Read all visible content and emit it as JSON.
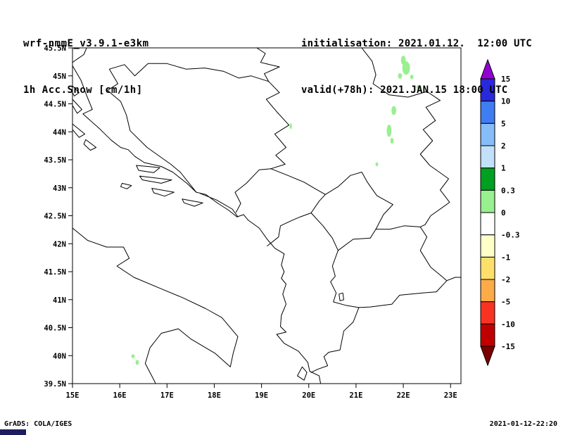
{
  "header": {
    "model": "wrf-nmmE_v3.9.1-e3km",
    "field": "1h Acc.Snow [cm/1h]",
    "init": "initialisation: 2021.01.12.  12:00 UTC",
    "valid": "valid(+78h): 2021.JAN.15 18:00 UTC"
  },
  "footer": {
    "left": "GrADS: COLA/IGES",
    "right": "2021-01-12-22:20"
  },
  "chart_data": {
    "type": "map",
    "title": "1h Acc.Snow [cm/1h]",
    "units": "cm/1h",
    "region": "Adriatic / Balkans",
    "x_axis": {
      "range": [
        15,
        23.22
      ],
      "ticks": [
        {
          "v": 15,
          "label": "15E"
        },
        {
          "v": 16,
          "label": "16E"
        },
        {
          "v": 17,
          "label": "17E"
        },
        {
          "v": 18,
          "label": "18E"
        },
        {
          "v": 19,
          "label": "19E"
        },
        {
          "v": 20,
          "label": "20E"
        },
        {
          "v": 21,
          "label": "21E"
        },
        {
          "v": 22,
          "label": "22E"
        },
        {
          "v": 23,
          "label": "23E"
        }
      ]
    },
    "y_axis": {
      "range": [
        39.5,
        45.5
      ],
      "ticks": [
        {
          "v": 39.5,
          "label": "39.5N"
        },
        {
          "v": 40,
          "label": "40N"
        },
        {
          "v": 40.5,
          "label": "40.5N"
        },
        {
          "v": 41,
          "label": "41N"
        },
        {
          "v": 41.5,
          "label": "41.5N"
        },
        {
          "v": 42,
          "label": "42N"
        },
        {
          "v": 42.5,
          "label": "42.5N"
        },
        {
          "v": 43,
          "label": "43N"
        },
        {
          "v": 43.5,
          "label": "43.5N"
        },
        {
          "v": 44,
          "label": "44N"
        },
        {
          "v": 44.5,
          "label": "44.5N"
        },
        {
          "v": 45,
          "label": "45N"
        },
        {
          "v": 45.5,
          "label": "45.5N"
        }
      ]
    },
    "colorbar": {
      "levels": [
        "15",
        "10",
        "5",
        "2",
        "1",
        "0.3",
        "0",
        "-0.3",
        "-1",
        "-2",
        "-5",
        "-10",
        "-15"
      ],
      "segment_colors": [
        "#2828dc",
        "#3f7df2",
        "#86bdf8",
        "#c3e0fb",
        "#00a020",
        "#98f08e",
        "#ffffff",
        "#ffffc8",
        "#fde06a",
        "#fcab47",
        "#f93322",
        "#c00000"
      ],
      "arrow_top_color": "#9400d3",
      "arrow_bottom_color": "#7d0000"
    },
    "snow_patches": {
      "color": "#98f08e",
      "value_range_cm": [
        0,
        1
      ],
      "ellipses_lon_lat_rx_ry": [
        [
          22.0,
          45.28,
          0.05,
          0.08
        ],
        [
          22.06,
          45.14,
          0.08,
          0.12
        ],
        [
          21.93,
          45.0,
          0.045,
          0.05
        ],
        [
          22.18,
          44.98,
          0.035,
          0.04
        ],
        [
          22.33,
          44.8,
          0.05,
          0.04
        ],
        [
          21.8,
          44.38,
          0.05,
          0.08
        ],
        [
          21.7,
          44.02,
          0.05,
          0.11
        ],
        [
          21.76,
          43.84,
          0.035,
          0.05
        ],
        [
          21.44,
          43.42,
          0.03,
          0.035
        ],
        [
          19.62,
          44.1,
          0.025,
          0.05
        ],
        [
          16.28,
          39.99,
          0.035,
          0.035
        ],
        [
          16.37,
          39.88,
          0.035,
          0.045
        ]
      ]
    },
    "map_lines": {
      "coast_east": [
        [
          15.0,
          45.18
        ],
        [
          15.18,
          44.92
        ],
        [
          15.3,
          44.65
        ],
        [
          15.42,
          44.4
        ],
        [
          15.22,
          44.32
        ],
        [
          15.58,
          44.05
        ],
        [
          15.82,
          43.85
        ],
        [
          16.02,
          43.72
        ],
        [
          16.18,
          43.68
        ],
        [
          16.32,
          43.56
        ],
        [
          16.52,
          43.45
        ],
        [
          16.88,
          43.38
        ],
        [
          17.12,
          43.28
        ],
        [
          17.42,
          43.08
        ],
        [
          17.62,
          42.92
        ],
        [
          17.82,
          42.88
        ],
        [
          18.08,
          42.72
        ],
        [
          18.3,
          42.6
        ],
        [
          18.48,
          42.48
        ],
        [
          18.62,
          42.52
        ],
        [
          18.72,
          42.42
        ],
        [
          18.95,
          42.28
        ],
        [
          19.12,
          42.08
        ],
        [
          19.28,
          41.92
        ],
        [
          19.48,
          41.82
        ],
        [
          19.42,
          41.62
        ],
        [
          19.48,
          41.5
        ],
        [
          19.42,
          41.38
        ],
        [
          19.52,
          41.28
        ],
        [
          19.45,
          41.1
        ],
        [
          19.52,
          40.92
        ],
        [
          19.42,
          40.72
        ],
        [
          19.4,
          40.52
        ],
        [
          19.52,
          40.42
        ],
        [
          19.32,
          40.38
        ],
        [
          19.48,
          40.22
        ],
        [
          19.78,
          40.08
        ],
        [
          19.98,
          39.88
        ],
        [
          20.02,
          39.72
        ],
        [
          20.22,
          39.64
        ],
        [
          20.25,
          39.5
        ]
      ],
      "coast_italy": [
        [
          15.0,
          42.28
        ],
        [
          15.32,
          42.06
        ],
        [
          15.72,
          41.94
        ],
        [
          16.08,
          41.94
        ],
        [
          16.2,
          41.74
        ],
        [
          15.94,
          41.6
        ],
        [
          16.3,
          41.4
        ],
        [
          16.86,
          41.2
        ],
        [
          17.32,
          41.04
        ],
        [
          17.82,
          40.84
        ],
        [
          18.16,
          40.68
        ],
        [
          18.5,
          40.34
        ],
        [
          18.4,
          40.04
        ],
        [
          18.34,
          39.8
        ],
        [
          18.02,
          40.04
        ],
        [
          17.5,
          40.3
        ],
        [
          17.24,
          40.48
        ],
        [
          16.88,
          40.4
        ],
        [
          16.64,
          40.14
        ],
        [
          16.54,
          39.86
        ],
        [
          16.7,
          39.6
        ],
        [
          16.76,
          39.5
        ]
      ],
      "islands": [
        [
          [
            15.0,
            44.82
          ],
          [
            15.14,
            44.7
          ],
          [
            15.04,
            44.64
          ],
          [
            15.0,
            44.7
          ]
        ],
        [
          [
            15.0,
            44.58
          ],
          [
            15.2,
            44.4
          ],
          [
            15.1,
            44.33
          ],
          [
            15.0,
            44.47
          ]
        ],
        [
          [
            15.0,
            44.14
          ],
          [
            15.26,
            43.96
          ],
          [
            15.14,
            43.9
          ],
          [
            15.0,
            44.04
          ]
        ],
        [
          [
            15.28,
            43.86
          ],
          [
            15.5,
            43.72
          ],
          [
            15.38,
            43.67
          ],
          [
            15.24,
            43.78
          ]
        ],
        [
          [
            16.35,
            43.4
          ],
          [
            16.85,
            43.36
          ],
          [
            16.72,
            43.27
          ],
          [
            16.4,
            43.31
          ]
        ],
        [
          [
            16.42,
            43.21
          ],
          [
            17.1,
            43.14
          ],
          [
            16.88,
            43.08
          ],
          [
            16.48,
            43.14
          ]
        ],
        [
          [
            16.05,
            43.08
          ],
          [
            16.25,
            43.04
          ],
          [
            16.15,
            42.98
          ],
          [
            16.02,
            43.02
          ]
        ],
        [
          [
            16.68,
            42.99
          ],
          [
            17.15,
            42.92
          ],
          [
            16.95,
            42.85
          ],
          [
            16.72,
            42.91
          ]
        ],
        [
          [
            17.32,
            42.8
          ],
          [
            17.76,
            42.73
          ],
          [
            17.58,
            42.67
          ],
          [
            17.36,
            42.73
          ]
        ],
        [
          [
            19.86,
            39.8
          ],
          [
            19.96,
            39.7
          ],
          [
            19.9,
            39.56
          ],
          [
            19.76,
            39.64
          ]
        ],
        [
          [
            20.64,
            41.1
          ],
          [
            20.72,
            41.12
          ],
          [
            20.74,
            41.0
          ],
          [
            20.66,
            40.98
          ]
        ]
      ],
      "borders": [
        [
          [
            15.3,
            45.5
          ],
          [
            15.24,
            45.38
          ],
          [
            15.1,
            45.3
          ],
          [
            15.0,
            45.24
          ]
        ],
        [
          [
            19.15,
            44.9
          ],
          [
            18.78,
            45.0
          ],
          [
            18.52,
            44.96
          ],
          [
            18.2,
            45.08
          ],
          [
            17.8,
            45.14
          ],
          [
            17.4,
            45.12
          ],
          [
            17.0,
            45.22
          ],
          [
            16.6,
            45.22
          ],
          [
            16.32,
            45.0
          ],
          [
            16.1,
            45.2
          ],
          [
            15.78,
            45.12
          ],
          [
            15.96,
            44.86
          ],
          [
            15.74,
            44.74
          ],
          [
            16.02,
            44.54
          ],
          [
            16.14,
            44.3
          ],
          [
            16.22,
            44.02
          ],
          [
            16.58,
            43.72
          ],
          [
            17.08,
            43.42
          ],
          [
            17.28,
            43.28
          ],
          [
            17.62,
            42.92
          ]
        ],
        [
          [
            17.7,
            42.9
          ],
          [
            18.05,
            42.78
          ],
          [
            18.38,
            42.62
          ],
          [
            18.5,
            42.48
          ]
        ],
        [
          [
            18.46,
            42.56
          ],
          [
            18.56,
            42.72
          ],
          [
            18.44,
            42.92
          ],
          [
            18.68,
            43.08
          ],
          [
            18.95,
            43.32
          ],
          [
            19.2,
            43.34
          ]
        ],
        [
          [
            19.15,
            44.9
          ],
          [
            19.38,
            44.7
          ],
          [
            19.1,
            44.58
          ],
          [
            19.32,
            44.36
          ],
          [
            19.58,
            44.12
          ],
          [
            19.28,
            43.96
          ],
          [
            19.52,
            43.72
          ],
          [
            19.3,
            43.58
          ],
          [
            19.5,
            43.42
          ],
          [
            19.2,
            43.34
          ]
        ],
        [
          [
            19.2,
            43.34
          ],
          [
            19.56,
            43.22
          ],
          [
            19.9,
            43.1
          ],
          [
            20.14,
            42.98
          ],
          [
            20.35,
            42.88
          ],
          [
            20.22,
            42.76
          ],
          [
            20.05,
            42.55
          ],
          [
            19.82,
            42.48
          ],
          [
            19.65,
            42.42
          ],
          [
            19.4,
            42.32
          ],
          [
            19.36,
            42.12
          ],
          [
            19.12,
            41.96
          ]
        ],
        [
          [
            20.35,
            42.88
          ],
          [
            20.62,
            43.02
          ],
          [
            20.88,
            43.22
          ],
          [
            21.12,
            43.28
          ],
          [
            21.24,
            43.1
          ],
          [
            21.44,
            42.86
          ],
          [
            21.78,
            42.7
          ],
          [
            21.58,
            42.52
          ],
          [
            21.42,
            42.26
          ]
        ],
        [
          [
            21.42,
            42.26
          ],
          [
            21.3,
            42.1
          ],
          [
            20.94,
            42.08
          ],
          [
            20.62,
            41.88
          ]
        ],
        [
          [
            20.62,
            41.88
          ],
          [
            20.5,
            42.1
          ],
          [
            20.3,
            42.32
          ],
          [
            20.05,
            42.55
          ]
        ],
        [
          [
            21.42,
            42.26
          ],
          [
            21.72,
            42.26
          ],
          [
            22.02,
            42.32
          ],
          [
            22.36,
            42.3
          ]
        ],
        [
          [
            22.36,
            42.3
          ],
          [
            22.5,
            42.12
          ],
          [
            22.36,
            41.88
          ],
          [
            22.58,
            41.58
          ],
          [
            22.78,
            41.44
          ],
          [
            22.92,
            41.34
          ]
        ],
        [
          [
            22.92,
            41.34
          ],
          [
            22.7,
            41.14
          ],
          [
            22.4,
            41.12
          ],
          [
            21.92,
            41.08
          ],
          [
            21.76,
            40.92
          ],
          [
            21.3,
            40.87
          ],
          [
            21.06,
            40.86
          ]
        ],
        [
          [
            21.06,
            40.86
          ],
          [
            20.78,
            40.9
          ],
          [
            20.52,
            40.96
          ],
          [
            20.58,
            41.12
          ],
          [
            20.46,
            41.32
          ],
          [
            20.56,
            41.42
          ],
          [
            20.5,
            41.6
          ],
          [
            20.62,
            41.88
          ]
        ],
        [
          [
            21.06,
            40.86
          ],
          [
            20.94,
            40.6
          ],
          [
            20.74,
            40.44
          ],
          [
            20.66,
            40.1
          ],
          [
            20.42,
            40.06
          ],
          [
            20.32,
            39.98
          ],
          [
            20.4,
            39.82
          ],
          [
            20.2,
            39.76
          ],
          [
            20.05,
            39.7
          ]
        ],
        [
          [
            21.12,
            45.5
          ],
          [
            21.34,
            45.26
          ],
          [
            21.42,
            45.02
          ],
          [
            21.36,
            44.86
          ],
          [
            21.7,
            44.66
          ],
          [
            22.1,
            44.62
          ],
          [
            22.5,
            44.72
          ],
          [
            22.78,
            44.56
          ],
          [
            22.48,
            44.44
          ],
          [
            22.68,
            44.2
          ]
        ],
        [
          [
            22.68,
            44.2
          ],
          [
            22.42,
            44.04
          ],
          [
            22.62,
            43.84
          ],
          [
            22.36,
            43.6
          ],
          [
            22.56,
            43.4
          ],
          [
            22.96,
            43.16
          ],
          [
            22.78,
            42.96
          ],
          [
            22.98,
            42.74
          ],
          [
            22.58,
            42.5
          ],
          [
            22.46,
            42.34
          ],
          [
            22.36,
            42.3
          ]
        ],
        [
          [
            22.92,
            41.34
          ],
          [
            23.1,
            41.4
          ],
          [
            23.22,
            41.4
          ]
        ],
        [
          [
            18.9,
            45.5
          ],
          [
            19.08,
            45.4
          ],
          [
            18.98,
            45.24
          ],
          [
            19.38,
            45.16
          ],
          [
            19.06,
            45.04
          ],
          [
            19.15,
            44.9
          ]
        ]
      ]
    }
  }
}
